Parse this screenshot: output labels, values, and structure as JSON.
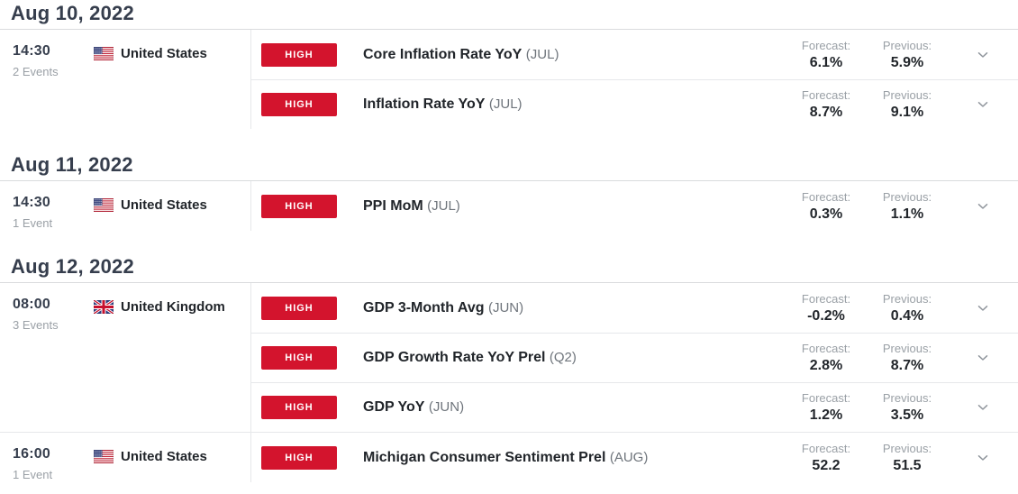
{
  "colors": {
    "accent_red": "#d3142d",
    "header_text": "#363e4d",
    "body_text": "#21252a",
    "muted_text": "#9aa0a6",
    "period_text": "#6e747b",
    "divider": "#e6e8ea"
  },
  "labels": {
    "forecast": "Forecast:",
    "previous": "Previous:"
  },
  "calendar": {
    "groups": [
      {
        "date": "Aug 10, 2022",
        "blocks": [
          {
            "time": "14:30",
            "events_count": "2 Events",
            "country": "United States",
            "flag": "us-flag",
            "events": [
              {
                "importance": "HIGH",
                "title": "Core Inflation Rate YoY",
                "period": "(JUL)",
                "forecast": "6.1%",
                "previous": "5.9%"
              },
              {
                "importance": "HIGH",
                "title": "Inflation Rate YoY",
                "period": "(JUL)",
                "forecast": "8.7%",
                "previous": "9.1%"
              }
            ]
          }
        ]
      },
      {
        "date": "Aug 11, 2022",
        "blocks": [
          {
            "time": "14:30",
            "events_count": "1 Event",
            "country": "United States",
            "flag": "us-flag",
            "events": [
              {
                "importance": "HIGH",
                "title": "PPI MoM",
                "period": "(JUL)",
                "forecast": "0.3%",
                "previous": "1.1%"
              }
            ]
          }
        ]
      },
      {
        "date": "Aug 12, 2022",
        "blocks": [
          {
            "time": "08:00",
            "events_count": "3 Events",
            "country": "United Kingdom",
            "flag": "uk-flag",
            "events": [
              {
                "importance": "HIGH",
                "title": "GDP 3-Month Avg",
                "period": "(JUN)",
                "forecast": "-0.2%",
                "previous": "0.4%"
              },
              {
                "importance": "HIGH",
                "title": "GDP Growth Rate YoY Prel",
                "period": "(Q2)",
                "forecast": "2.8%",
                "previous": "8.7%"
              },
              {
                "importance": "HIGH",
                "title": "GDP YoY",
                "period": "(JUN)",
                "forecast": "1.2%",
                "previous": "3.5%"
              }
            ]
          },
          {
            "time": "16:00",
            "events_count": "1 Event",
            "country": "United States",
            "flag": "us-flag",
            "events": [
              {
                "importance": "HIGH",
                "title": "Michigan Consumer Sentiment Prel",
                "period": "(AUG)",
                "forecast": "52.2",
                "previous": "51.5"
              }
            ]
          }
        ]
      }
    ]
  }
}
